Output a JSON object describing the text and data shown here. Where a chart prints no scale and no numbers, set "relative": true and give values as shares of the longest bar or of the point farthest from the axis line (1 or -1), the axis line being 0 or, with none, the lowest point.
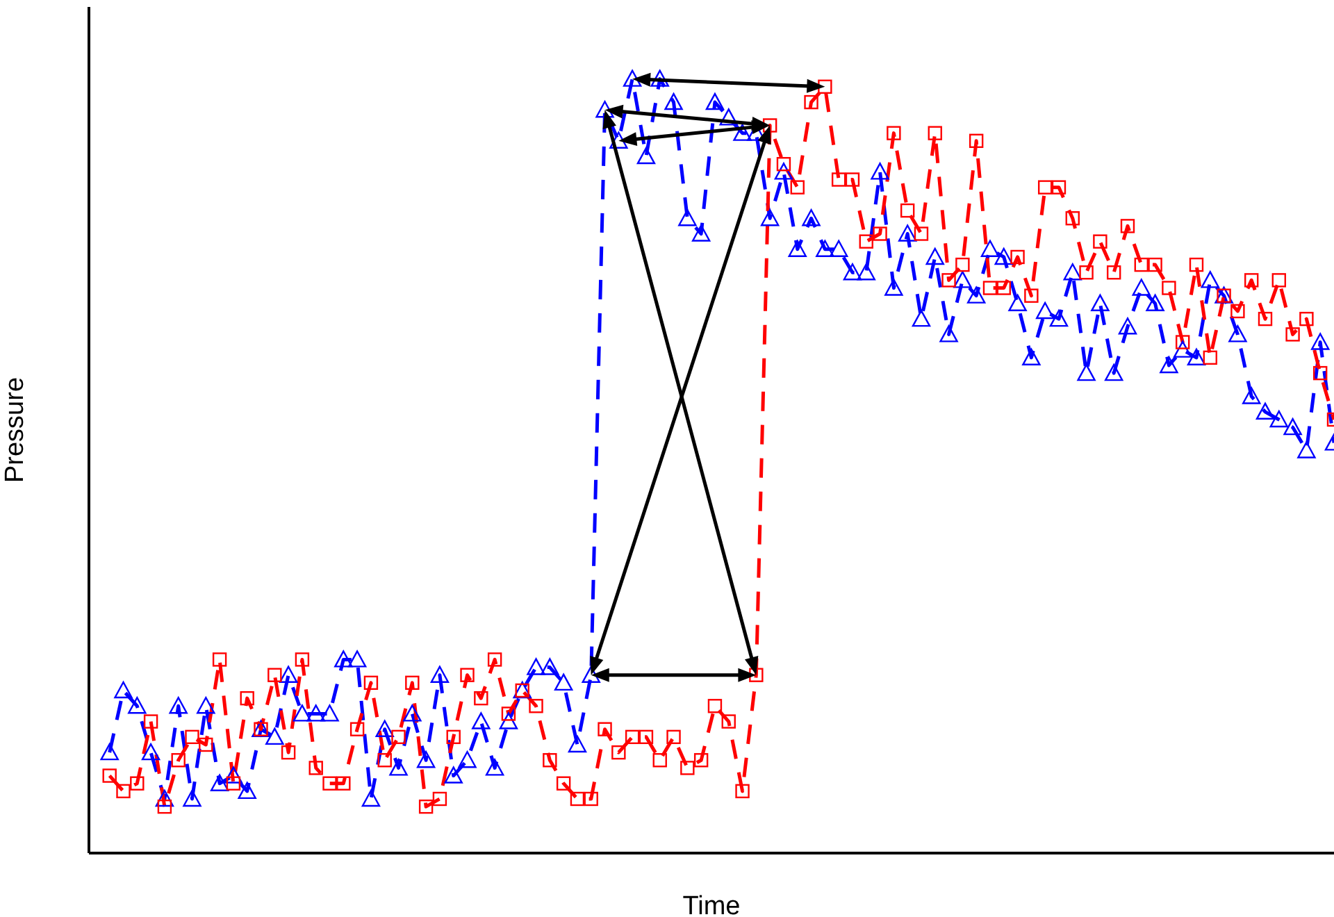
{
  "chart_data": {
    "type": "line",
    "relative": true,
    "xlabel": "Time",
    "ylabel": "Pressure",
    "line_style": "dashed",
    "categories": [
      null,
      null,
      null,
      null,
      null,
      null,
      null,
      null,
      null,
      null,
      null,
      null,
      null,
      null,
      null,
      null,
      null,
      null,
      null,
      null,
      null,
      null,
      null,
      null,
      null,
      null,
      null,
      null,
      null,
      null,
      null,
      null,
      null,
      null,
      null,
      null,
      null,
      null,
      null,
      null,
      null,
      null,
      null,
      null,
      null,
      null,
      null,
      null,
      null,
      null,
      null,
      null,
      null,
      null,
      null,
      null,
      null,
      null,
      null,
      null,
      null,
      null,
      null,
      null,
      null,
      null,
      null,
      null,
      null,
      null,
      null,
      null,
      null,
      null,
      null,
      null,
      null,
      null,
      null,
      null,
      null,
      null,
      null,
      null,
      null,
      null,
      null,
      null,
      null,
      null
    ],
    "series": [
      {
        "color": "#0000ff",
        "marker": "triangle",
        "values": [
          0.13,
          0.21,
          0.19,
          0.13,
          0.07,
          0.19,
          0.07,
          0.19,
          0.09,
          0.1,
          0.08,
          0.16,
          0.15,
          0.23,
          0.18,
          0.18,
          0.18,
          0.25,
          0.25,
          0.07,
          0.16,
          0.11,
          0.18,
          0.12,
          0.23,
          0.1,
          0.12,
          0.17,
          0.11,
          0.17,
          0.21,
          0.24,
          0.24,
          0.22,
          0.14,
          0.23,
          0.96,
          0.92,
          1.0,
          0.9,
          1.0,
          0.97,
          0.82,
          0.8,
          0.97,
          0.95,
          0.93,
          0.93,
          0.82,
          0.88,
          0.78,
          0.82,
          0.78,
          0.78,
          0.75,
          0.75,
          0.88,
          0.73,
          0.8,
          0.69,
          0.77,
          0.67,
          0.74,
          0.72,
          0.78,
          0.77,
          0.71,
          0.64,
          0.7,
          0.69,
          0.75,
          0.62,
          0.71,
          0.62,
          0.68,
          0.73,
          0.71,
          0.63,
          0.65,
          0.64,
          0.74,
          0.72,
          0.67,
          0.59,
          0.57,
          0.56,
          0.55,
          0.52,
          0.66,
          0.53
        ]
      },
      {
        "color": "#ff0000",
        "marker": "square",
        "values": [
          0.1,
          0.08,
          0.09,
          0.17,
          0.06,
          0.12,
          0.15,
          0.14,
          0.25,
          0.09,
          0.2,
          0.16,
          0.23,
          0.13,
          0.25,
          0.11,
          0.09,
          0.09,
          0.16,
          0.22,
          0.12,
          0.15,
          0.22,
          0.06,
          0.07,
          0.15,
          0.23,
          0.2,
          0.25,
          0.18,
          0.21,
          0.19,
          0.12,
          0.09,
          0.07,
          0.07,
          0.16,
          0.13,
          0.15,
          0.15,
          0.12,
          0.15,
          0.11,
          0.12,
          0.19,
          0.17,
          0.08,
          0.23,
          0.94,
          0.89,
          0.86,
          0.97,
          0.99,
          0.87,
          0.87,
          0.79,
          0.8,
          0.93,
          0.83,
          0.8,
          0.93,
          0.74,
          0.76,
          0.92,
          0.73,
          0.73,
          0.77,
          0.72,
          0.86,
          0.86,
          0.82,
          0.75,
          0.79,
          0.75,
          0.81,
          0.76,
          0.76,
          0.73,
          0.66,
          0.76,
          0.64,
          0.72,
          0.7,
          0.74,
          0.69,
          0.74,
          0.67,
          0.69,
          0.62,
          0.56
        ]
      }
    ]
  }
}
